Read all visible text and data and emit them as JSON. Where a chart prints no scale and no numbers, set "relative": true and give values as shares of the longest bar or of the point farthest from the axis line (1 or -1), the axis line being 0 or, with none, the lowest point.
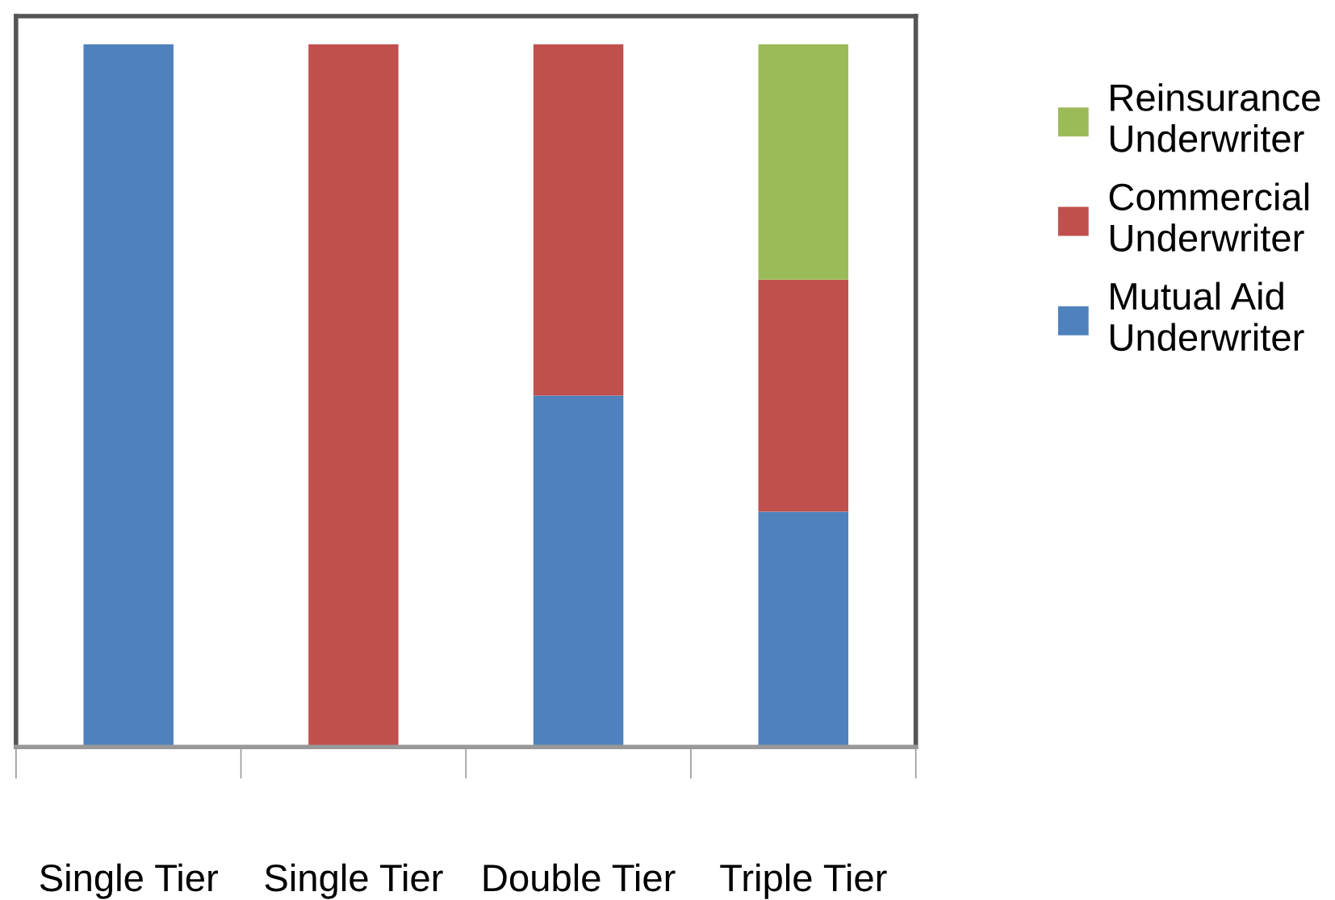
{
  "chart_data": {
    "type": "bar",
    "stacked": true,
    "relative": true,
    "categories": [
      "Single Tier",
      "Single Tier",
      "Double Tier",
      "Triple Tier"
    ],
    "series": [
      {
        "name": "Mutual Aid Underwriter",
        "color": "#4f81bd",
        "values": [
          1,
          0,
          0.5,
          0.335
        ]
      },
      {
        "name": "Commercial Underwriter",
        "color": "#c0504d",
        "values": [
          0,
          1,
          0.5,
          0.33
        ]
      },
      {
        "name": "Reinsurance Underwriter",
        "color": "#9bbb59",
        "values": [
          0,
          0,
          0,
          0.335
        ]
      }
    ],
    "legend": "right",
    "grid": false
  }
}
